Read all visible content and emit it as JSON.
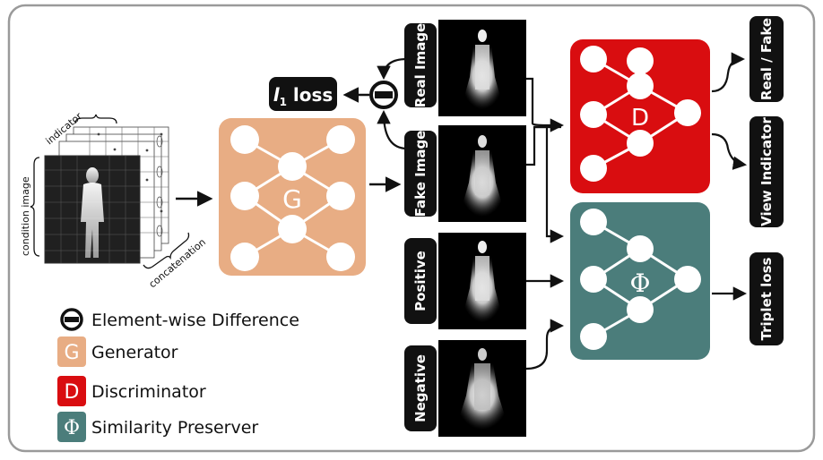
{
  "labels": {
    "indicator": "indicator",
    "condition_image": "condition image",
    "concatenation": "concatenation",
    "l1_loss_main": "l",
    "l1_loss_sub": "1",
    "l1_loss_word": " loss",
    "real_image": "Real Image",
    "fake_image": "Fake Image",
    "positive": "Positive",
    "negative": "Negative",
    "real_fake": "Real / Fake",
    "view_indicator": "View Indicator",
    "triplet_loss": "Triplet loss"
  },
  "networks": {
    "generator_symbol": "G",
    "discriminator_symbol": "D",
    "preserver_symbol": "Φ"
  },
  "legend": [
    {
      "symbol": "−",
      "text": "Element-wise Difference",
      "color": "#111111"
    },
    {
      "symbol": "G",
      "text": "Generator",
      "color": "#e8ad84"
    },
    {
      "symbol": "D",
      "text": "Discriminator",
      "color": "#d90d10"
    },
    {
      "symbol": "Φ",
      "text": "Similarity Preserver",
      "color": "#4b7d7b"
    }
  ],
  "colors": {
    "generator": "#e8ad84",
    "discriminator": "#d90d10",
    "preserver": "#4b7d7b",
    "frame": "#9a9a9a"
  }
}
